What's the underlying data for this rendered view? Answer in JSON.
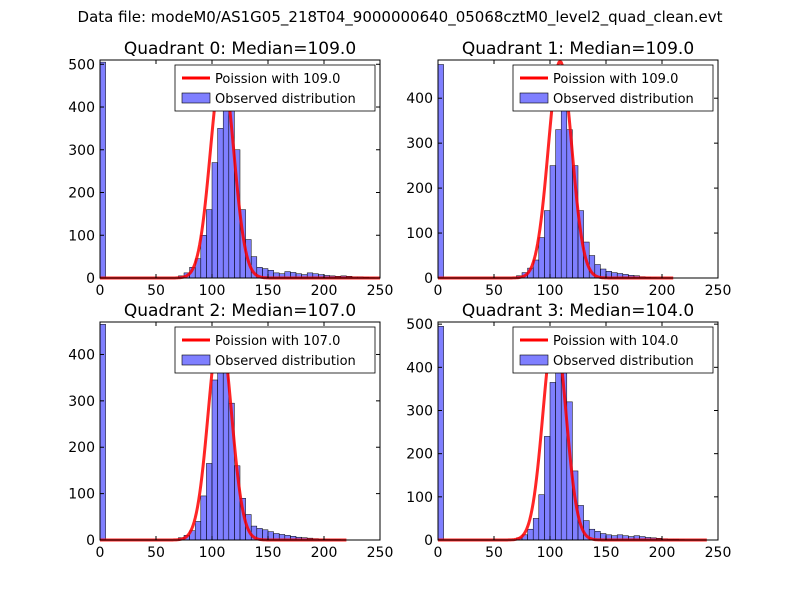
{
  "figure_title": "Data file: modeM0/AS1G05_218T04_9000000640_05068cztM0_level2_quad_clean.evt",
  "colors": {
    "poisson": "#ff0000",
    "bars": "#0000ff",
    "bars_opacity": 0.5,
    "axis": "#000000"
  },
  "chart_data": [
    {
      "type": "bar",
      "title": "Quadrant 0: Median=109.0",
      "xlim": [
        0,
        250
      ],
      "ylim": [
        0,
        510
      ],
      "xticks": [
        0,
        50,
        100,
        150,
        200,
        250
      ],
      "yticks": [
        0,
        100,
        200,
        300,
        400,
        500
      ],
      "legend": {
        "position": "top-right",
        "entries": [
          "Poission with 109.0",
          "Observed distribution"
        ]
      },
      "bin_width": 5,
      "bins_x": [
        0,
        70,
        75,
        80,
        85,
        90,
        95,
        100,
        105,
        110,
        115,
        120,
        125,
        130,
        135,
        140,
        145,
        150,
        155,
        160,
        165,
        170,
        175,
        180,
        185,
        190,
        195,
        200,
        205,
        210,
        215,
        220,
        225,
        230,
        235,
        240
      ],
      "bins_y": [
        505,
        5,
        12,
        25,
        45,
        100,
        160,
        270,
        350,
        490,
        400,
        300,
        160,
        90,
        50,
        25,
        22,
        18,
        12,
        10,
        15,
        13,
        10,
        8,
        12,
        10,
        8,
        6,
        5,
        4,
        5,
        4,
        3,
        3,
        2,
        1
      ],
      "poisson_lambda": 109.0,
      "poisson_peak": 490,
      "poisson_x_range": [
        0,
        250
      ]
    },
    {
      "type": "bar",
      "title": "Quadrant 1: Median=109.0",
      "xlim": [
        0,
        250
      ],
      "ylim": [
        0,
        485
      ],
      "xticks": [
        0,
        50,
        100,
        150,
        200,
        250
      ],
      "yticks": [
        0,
        100,
        200,
        300,
        400
      ],
      "legend": {
        "position": "top-right",
        "entries": [
          "Poission with 109.0",
          "Observed distribution"
        ]
      },
      "bin_width": 5,
      "bins_x": [
        0,
        70,
        75,
        80,
        85,
        90,
        95,
        100,
        105,
        110,
        115,
        120,
        125,
        130,
        135,
        140,
        145,
        150,
        155,
        160,
        165,
        170,
        175,
        180,
        185,
        190
      ],
      "bins_y": [
        475,
        5,
        12,
        22,
        40,
        90,
        150,
        250,
        330,
        470,
        330,
        250,
        150,
        80,
        50,
        30,
        20,
        15,
        12,
        10,
        8,
        6,
        5,
        3,
        2,
        1
      ],
      "poisson_lambda": 109.0,
      "poisson_peak": 482,
      "poisson_x_range": [
        0,
        210
      ]
    },
    {
      "type": "bar",
      "title": "Quadrant 2: Median=107.0",
      "xlim": [
        0,
        250
      ],
      "ylim": [
        0,
        470
      ],
      "xticks": [
        0,
        50,
        100,
        150,
        200,
        250
      ],
      "yticks": [
        0,
        100,
        200,
        300,
        400
      ],
      "legend": {
        "position": "top-right",
        "entries": [
          "Poission with 107.0",
          "Observed distribution"
        ]
      },
      "bin_width": 5,
      "bins_x": [
        0,
        70,
        75,
        80,
        85,
        90,
        95,
        100,
        105,
        110,
        115,
        120,
        125,
        130,
        135,
        140,
        145,
        150,
        155,
        160,
        165,
        170,
        175,
        180,
        185,
        190,
        195,
        200,
        205,
        210
      ],
      "bins_y": [
        465,
        5,
        10,
        20,
        40,
        95,
        165,
        345,
        450,
        420,
        295,
        160,
        90,
        55,
        30,
        25,
        22,
        18,
        14,
        12,
        10,
        8,
        6,
        5,
        4,
        3,
        2,
        2,
        1,
        1
      ],
      "poisson_lambda": 107.0,
      "poisson_peak": 455,
      "poisson_x_range": [
        0,
        220
      ]
    },
    {
      "type": "bar",
      "title": "Quadrant 3: Median=104.0",
      "xlim": [
        0,
        250
      ],
      "ylim": [
        0,
        505
      ],
      "xticks": [
        0,
        50,
        100,
        150,
        200,
        250
      ],
      "yticks": [
        0,
        100,
        200,
        300,
        400,
        500
      ],
      "legend": {
        "position": "top-right",
        "entries": [
          "Poission with 104.0",
          "Observed distribution"
        ]
      },
      "bin_width": 5,
      "bins_x": [
        0,
        70,
        75,
        80,
        85,
        90,
        95,
        100,
        105,
        110,
        115,
        120,
        125,
        130,
        135,
        140,
        145,
        150,
        155,
        160,
        165,
        170,
        175,
        180,
        185,
        190,
        195,
        200,
        205,
        210,
        215
      ],
      "bins_y": [
        495,
        5,
        12,
        25,
        50,
        105,
        240,
        365,
        480,
        410,
        320,
        160,
        80,
        45,
        25,
        20,
        15,
        12,
        10,
        12,
        10,
        8,
        10,
        8,
        6,
        5,
        4,
        3,
        2,
        2,
        1
      ],
      "poisson_lambda": 104.0,
      "poisson_peak": 490,
      "poisson_x_range": [
        0,
        240
      ]
    }
  ]
}
